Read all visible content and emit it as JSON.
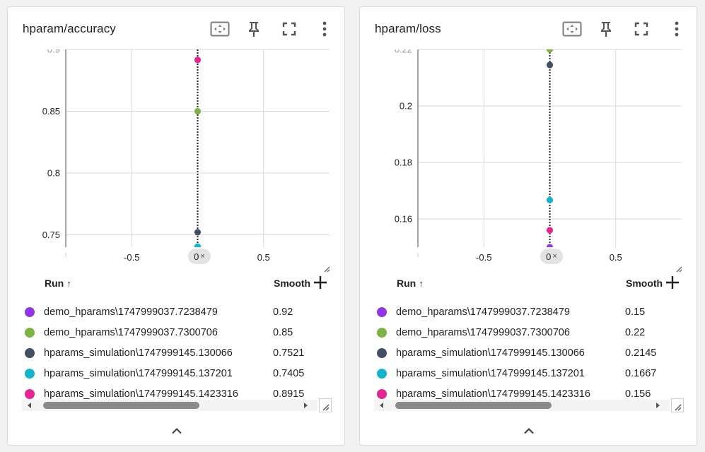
{
  "colors": {
    "purple": "#9334e6",
    "green": "#7cb342",
    "slate": "#425066",
    "cyan": "#12b5cb",
    "pink": "#e52592",
    "grid": "#d9d9d9",
    "axis": "#888888"
  },
  "toolbar_icons": [
    "fit-domain-icon",
    "pin-icon",
    "fullscreen-icon",
    "more-vert-icon"
  ],
  "table": {
    "run_header": "Run",
    "sort_arrow": "↑",
    "smooth_header": "Smoothed",
    "add_column_icon": "plus-icon"
  },
  "cards": [
    {
      "title": "hparam/accuracy",
      "x_ticks": [
        "-0.5",
        "0.5"
      ],
      "zero_chip": "0",
      "zero_chip_close": "×",
      "rows": [
        {
          "name": "demo_hparams\\1747999037.7238479",
          "value": "0.92",
          "color": "#9334e6"
        },
        {
          "name": "demo_hparams\\1747999037.7300706",
          "value": "0.85",
          "color": "#7cb342"
        },
        {
          "name": "hparams_simulation\\1747999145.130066",
          "value": "0.7521",
          "color": "#425066"
        },
        {
          "name": "hparams_simulation\\1747999145.137201",
          "value": "0.7405",
          "color": "#12b5cb"
        },
        {
          "name": "hparams_simulation\\1747999145.1423316",
          "value": "0.8915",
          "color": "#e52592"
        }
      ]
    },
    {
      "title": "hparam/loss",
      "x_ticks": [
        "-0.5",
        "0.5"
      ],
      "zero_chip": "0",
      "zero_chip_close": "×",
      "rows": [
        {
          "name": "demo_hparams\\1747999037.7238479",
          "value": "0.15",
          "color": "#9334e6"
        },
        {
          "name": "demo_hparams\\1747999037.7300706",
          "value": "0.22",
          "color": "#7cb342"
        },
        {
          "name": "hparams_simulation\\1747999145.130066",
          "value": "0.2145",
          "color": "#425066"
        },
        {
          "name": "hparams_simulation\\1747999145.137201",
          "value": "0.1667",
          "color": "#12b5cb"
        },
        {
          "name": "hparams_simulation\\1747999145.1423316",
          "value": "0.156",
          "color": "#e52592"
        }
      ]
    }
  ],
  "chart_data": [
    {
      "type": "scatter",
      "title": "hparam/accuracy",
      "xlim": [
        -1,
        1
      ],
      "ylim": [
        0.74,
        0.9
      ],
      "y_ticks": [
        "0.9",
        "0.85",
        "0.8",
        "0.75"
      ],
      "x_ticks": [
        "-0.5",
        "0.5"
      ],
      "grid": true,
      "series": [
        {
          "name": "demo_hparams\\1747999037.7238479",
          "x": [
            0
          ],
          "y": [
            0.92
          ],
          "color": "#9334e6"
        },
        {
          "name": "demo_hparams\\1747999037.7300706",
          "x": [
            0
          ],
          "y": [
            0.85
          ],
          "color": "#7cb342"
        },
        {
          "name": "hparams_simulation\\1747999145.130066",
          "x": [
            0
          ],
          "y": [
            0.7521
          ],
          "color": "#425066"
        },
        {
          "name": "hparams_simulation\\1747999145.137201",
          "x": [
            0
          ],
          "y": [
            0.7405
          ],
          "color": "#12b5cb"
        },
        {
          "name": "hparams_simulation\\1747999145.1423316",
          "x": [
            0
          ],
          "y": [
            0.8915
          ],
          "color": "#e52592"
        }
      ]
    },
    {
      "type": "scatter",
      "title": "hparam/loss",
      "xlim": [
        -1,
        1
      ],
      "ylim": [
        0.15,
        0.22
      ],
      "y_ticks": [
        "0.22",
        "0.2",
        "0.18",
        "0.16"
      ],
      "x_ticks": [
        "-0.5",
        "0.5"
      ],
      "grid": true,
      "series": [
        {
          "name": "demo_hparams\\1747999037.7238479",
          "x": [
            0
          ],
          "y": [
            0.15
          ],
          "color": "#9334e6"
        },
        {
          "name": "demo_hparams\\1747999037.7300706",
          "x": [
            0
          ],
          "y": [
            0.22
          ],
          "color": "#7cb342"
        },
        {
          "name": "hparams_simulation\\1747999145.130066",
          "x": [
            0
          ],
          "y": [
            0.2145
          ],
          "color": "#425066"
        },
        {
          "name": "hparams_simulation\\1747999145.137201",
          "x": [
            0
          ],
          "y": [
            0.1667
          ],
          "color": "#12b5cb"
        },
        {
          "name": "hparams_simulation\\1747999145.1423316",
          "x": [
            0
          ],
          "y": [
            0.156
          ],
          "color": "#e52592"
        }
      ]
    }
  ]
}
